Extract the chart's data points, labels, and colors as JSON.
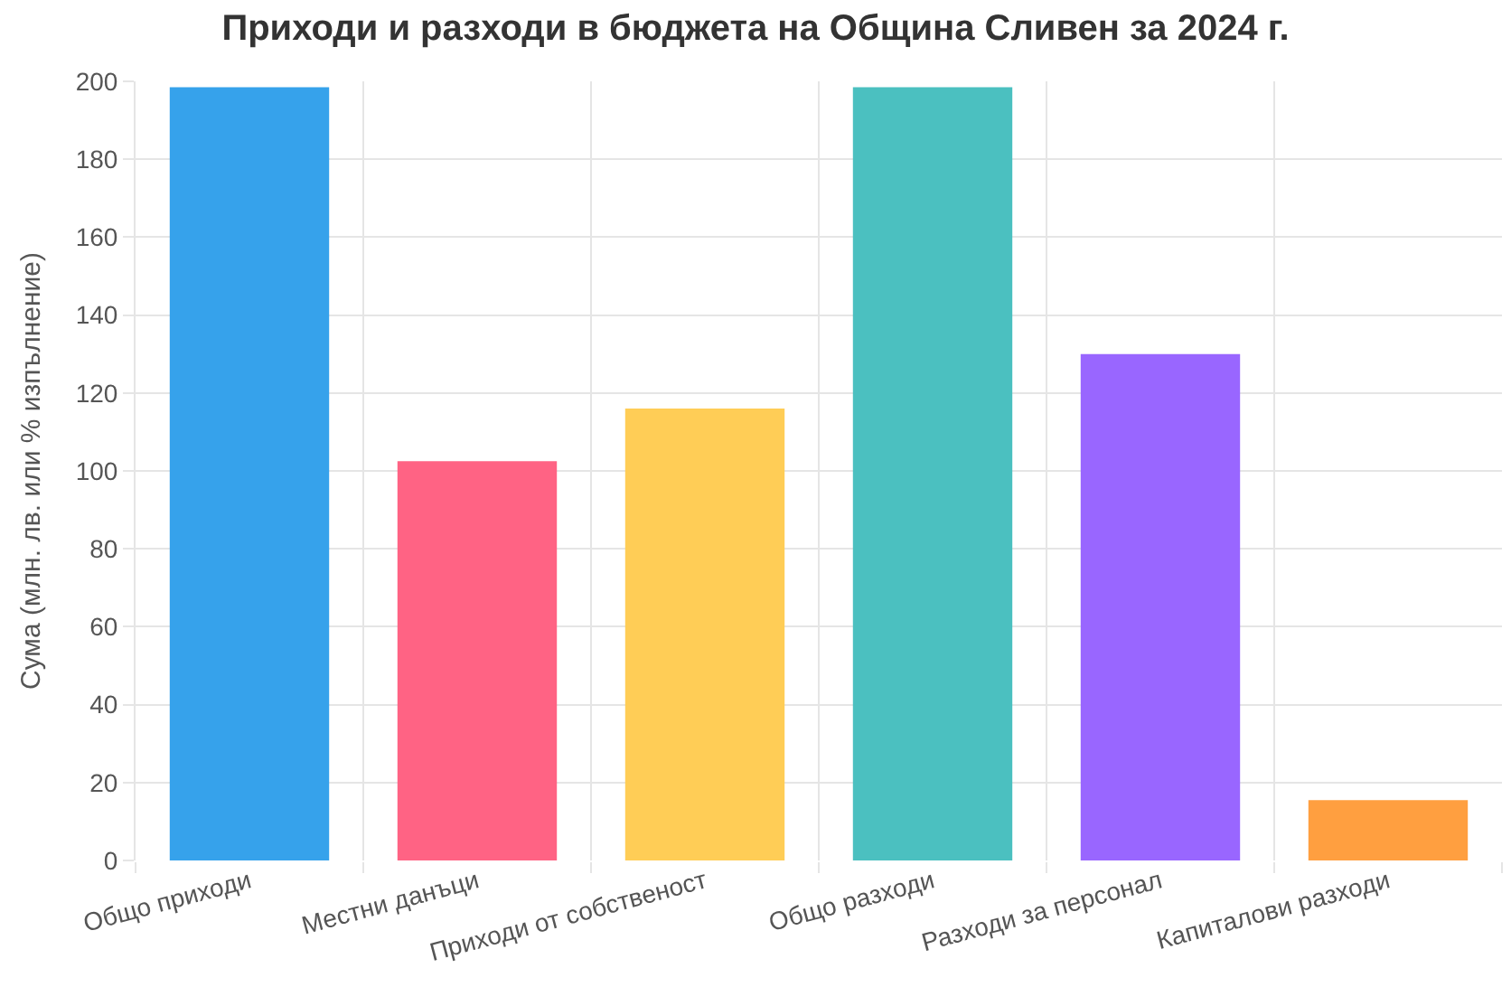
{
  "chart_data": {
    "type": "bar",
    "title": "Приходи и разходи в бюджета на Община Сливен за 2024 г.",
    "ylabel": "Сума (млн. лв. или % изпълнение)",
    "categories": [
      "Общо приходи",
      "Местни данъци",
      "Приходи от собственост",
      "Общо разходи",
      "Разходи за персонал",
      "Капиталови разходи"
    ],
    "values": [
      198.5,
      102.5,
      116,
      198.5,
      130,
      15.5
    ],
    "colors": [
      "#36a2eb",
      "#ff6384",
      "#ffcd56",
      "#4bc0c0",
      "#9966ff",
      "#ff9f40"
    ],
    "ylim": [
      0,
      200
    ],
    "yticks": [
      0,
      20,
      40,
      60,
      80,
      100,
      120,
      140,
      160,
      180,
      200
    ],
    "grid": true
  }
}
